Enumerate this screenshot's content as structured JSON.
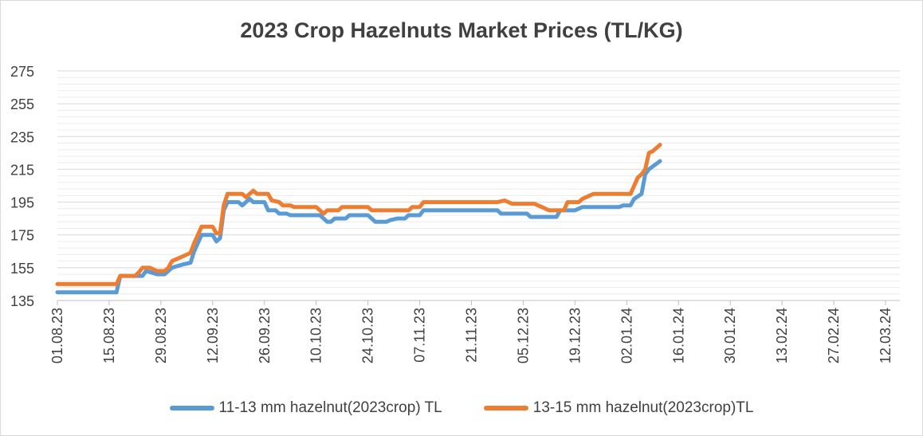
{
  "chart_data": {
    "type": "line",
    "title": "2023 Crop Hazelnuts Market Prices (TL/KG)",
    "xlabel": "",
    "ylabel": "",
    "ylim": [
      135,
      275
    ],
    "yticks": [
      135,
      155,
      175,
      195,
      215,
      235,
      255,
      275
    ],
    "x_ticks": [
      "01.08.23",
      "15.08.23",
      "29.08.23",
      "12.09.23",
      "26.09.23",
      "10.10.23",
      "24.10.23",
      "07.11.23",
      "21.11.23",
      "05.12.23",
      "19.12.23",
      "02.01.24",
      "16.01.24",
      "30.01.24",
      "13.02.24",
      "27.02.24",
      "12.03.24"
    ],
    "x_tick_days": [
      0,
      14,
      28,
      42,
      56,
      70,
      84,
      98,
      112,
      126,
      140,
      154,
      168,
      182,
      196,
      210,
      224
    ],
    "grid": true,
    "legend_position": "bottom",
    "series": [
      {
        "name": "11-13 mm hazelnut(2023crop) TL",
        "color": "#5b9bd5",
        "points": [
          [
            0,
            140
          ],
          [
            16,
            140
          ],
          [
            17,
            150
          ],
          [
            23,
            150
          ],
          [
            24,
            153
          ],
          [
            27,
            151
          ],
          [
            29,
            151
          ],
          [
            31,
            155
          ],
          [
            34,
            157
          ],
          [
            36,
            158
          ],
          [
            37,
            165
          ],
          [
            39,
            175
          ],
          [
            42,
            175
          ],
          [
            43,
            171
          ],
          [
            44,
            173
          ],
          [
            45,
            190
          ],
          [
            46,
            195
          ],
          [
            49,
            195
          ],
          [
            50,
            193
          ],
          [
            52,
            197
          ],
          [
            53,
            195
          ],
          [
            56,
            195
          ],
          [
            57,
            190
          ],
          [
            59,
            190
          ],
          [
            60,
            188
          ],
          [
            62,
            188
          ],
          [
            63,
            187
          ],
          [
            71,
            187
          ],
          [
            72,
            185
          ],
          [
            73,
            183
          ],
          [
            74,
            183
          ],
          [
            75,
            185
          ],
          [
            78,
            185
          ],
          [
            79,
            187
          ],
          [
            84,
            187
          ],
          [
            85,
            185
          ],
          [
            86,
            183
          ],
          [
            89,
            183
          ],
          [
            90,
            184
          ],
          [
            92,
            185
          ],
          [
            94,
            185
          ],
          [
            95,
            187
          ],
          [
            98,
            187
          ],
          [
            99,
            190
          ],
          [
            119,
            190
          ],
          [
            120,
            188
          ],
          [
            127,
            188
          ],
          [
            128,
            186
          ],
          [
            135,
            186
          ],
          [
            136,
            190
          ],
          [
            140,
            190
          ],
          [
            141,
            191
          ],
          [
            142,
            192
          ],
          [
            152,
            192
          ],
          [
            153,
            193
          ],
          [
            155,
            193
          ],
          [
            156,
            197
          ],
          [
            158,
            200
          ],
          [
            159,
            212
          ],
          [
            160,
            215
          ],
          [
            163,
            220
          ]
        ]
      },
      {
        "name": "13-15 mm hazelnut(2023crop)TL",
        "color": "#ed7d31",
        "points": [
          [
            0,
            145
          ],
          [
            16,
            145
          ],
          [
            17,
            150
          ],
          [
            21,
            150
          ],
          [
            22,
            152
          ],
          [
            23,
            155
          ],
          [
            25,
            155
          ],
          [
            27,
            153
          ],
          [
            29,
            153
          ],
          [
            30,
            155
          ],
          [
            31,
            159
          ],
          [
            32,
            160
          ],
          [
            34,
            162
          ],
          [
            35,
            163
          ],
          [
            36,
            164
          ],
          [
            37,
            170
          ],
          [
            39,
            180
          ],
          [
            42,
            180
          ],
          [
            43,
            176
          ],
          [
            44,
            176
          ],
          [
            45,
            193
          ],
          [
            46,
            200
          ],
          [
            50,
            200
          ],
          [
            51,
            198
          ],
          [
            52,
            200
          ],
          [
            53,
            202
          ],
          [
            54,
            200
          ],
          [
            57,
            200
          ],
          [
            58,
            196
          ],
          [
            60,
            195
          ],
          [
            61,
            193
          ],
          [
            63,
            193
          ],
          [
            64,
            192
          ],
          [
            70,
            192
          ],
          [
            71,
            190
          ],
          [
            72,
            188
          ],
          [
            73,
            190
          ],
          [
            76,
            190
          ],
          [
            77,
            192
          ],
          [
            84,
            192
          ],
          [
            85,
            190
          ],
          [
            95,
            190
          ],
          [
            96,
            192
          ],
          [
            98,
            192
          ],
          [
            99,
            195
          ],
          [
            119,
            195
          ],
          [
            121,
            196
          ],
          [
            122,
            195
          ],
          [
            123,
            194
          ],
          [
            129,
            194
          ],
          [
            130,
            193
          ],
          [
            131,
            192
          ],
          [
            133,
            190
          ],
          [
            137,
            190
          ],
          [
            138,
            195
          ],
          [
            141,
            195
          ],
          [
            142,
            197
          ],
          [
            144,
            199
          ],
          [
            145,
            200
          ],
          [
            155,
            200
          ],
          [
            156,
            205
          ],
          [
            157,
            210
          ],
          [
            158,
            212
          ],
          [
            159,
            215
          ],
          [
            160,
            225
          ],
          [
            161,
            226
          ],
          [
            163,
            230
          ]
        ]
      }
    ]
  }
}
